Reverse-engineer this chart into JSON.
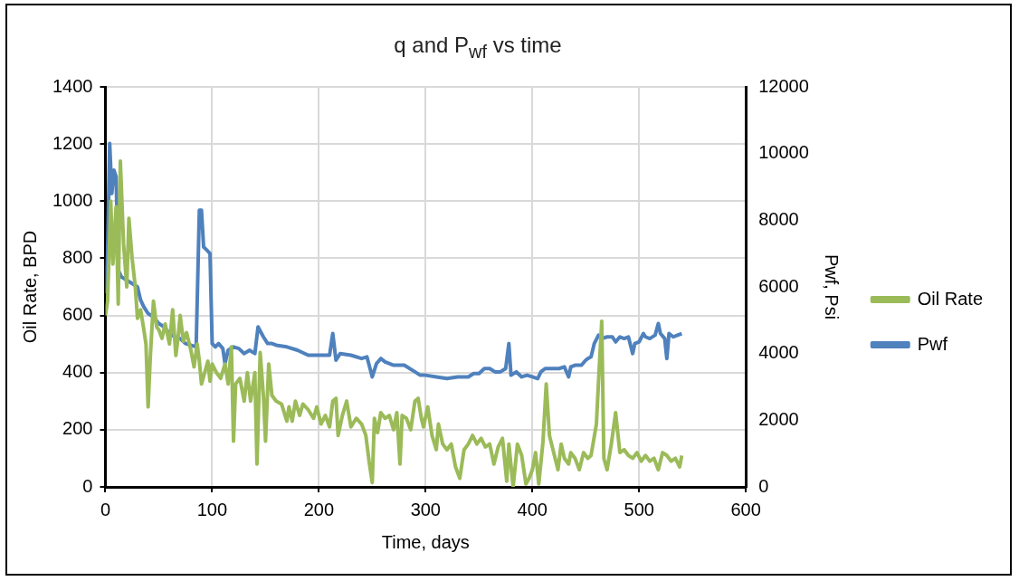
{
  "chart_data": {
    "type": "line",
    "title": "q and P$_{wf}$ vs time",
    "xlabel": "Time, days",
    "ylabel": "Oil Rate, BPD",
    "y2label": "Pwf, Psi",
    "xlim": [
      0,
      600
    ],
    "xticks": [
      0,
      100,
      200,
      300,
      400,
      500,
      600
    ],
    "ylim": [
      0,
      1400
    ],
    "yticks": [
      0,
      200,
      400,
      600,
      800,
      1000,
      1200,
      1400
    ],
    "y2lim": [
      0,
      12000
    ],
    "y2ticks": [
      0,
      2000,
      4000,
      6000,
      8000,
      10000,
      12000
    ],
    "grid": true,
    "legend": "right",
    "marker": "none",
    "line_style": "solid",
    "series": [
      {
        "name": "Oil Rate",
        "color": "#9bbb59",
        "x": [
          0,
          2,
          5,
          7,
          10,
          12,
          14,
          17,
          20,
          22,
          25,
          28,
          30,
          33,
          36,
          38,
          40,
          42,
          45,
          48,
          50,
          53,
          56,
          60,
          63,
          66,
          68,
          70,
          73,
          76,
          80,
          83,
          86,
          88,
          90,
          93,
          96,
          98,
          100,
          104,
          108,
          112,
          115,
          118,
          120,
          122,
          126,
          130,
          133,
          136,
          140,
          142,
          145,
          148,
          150,
          153,
          156,
          160,
          165,
          170,
          172,
          175,
          178,
          182,
          185,
          190,
          195,
          198,
          202,
          206,
          210,
          213,
          216,
          218,
          222,
          226,
          230,
          235,
          240,
          244,
          247,
          250,
          252,
          255,
          258,
          262,
          266,
          270,
          273,
          276,
          278,
          282,
          286,
          290,
          293,
          296,
          298,
          302,
          306,
          310,
          312,
          316,
          320,
          324,
          328,
          332,
          336,
          340,
          344,
          348,
          352,
          356,
          360,
          364,
          368,
          372,
          376,
          378,
          382,
          386,
          390,
          394,
          397,
          400,
          403,
          406,
          410,
          413,
          416,
          420,
          424,
          427,
          430,
          434,
          436,
          440,
          444,
          448,
          452,
          455,
          460,
          462,
          465,
          467,
          470,
          474,
          478,
          482,
          486,
          490,
          494,
          498,
          502,
          506,
          510,
          514,
          518,
          522,
          526,
          530,
          534,
          538,
          540
        ],
        "values": [
          600,
          650,
          1000,
          780,
          980,
          640,
          1140,
          850,
          700,
          940,
          800,
          700,
          590,
          620,
          550,
          500,
          280,
          450,
          650,
          560,
          550,
          520,
          570,
          500,
          620,
          460,
          520,
          600,
          510,
          540,
          480,
          420,
          500,
          440,
          360,
          400,
          440,
          370,
          430,
          400,
          380,
          430,
          360,
          490,
          160,
          360,
          380,
          300,
          400,
          300,
          400,
          80,
          470,
          320,
          160,
          430,
          320,
          300,
          290,
          230,
          280,
          230,
          300,
          250,
          290,
          270,
          240,
          280,
          220,
          250,
          210,
          300,
          310,
          180,
          250,
          300,
          210,
          240,
          220,
          180,
          90,
          15,
          240,
          190,
          260,
          240,
          250,
          200,
          260,
          80,
          250,
          240,
          200,
          300,
          310,
          240,
          210,
          280,
          180,
          130,
          220,
          150,
          130,
          150,
          70,
          30,
          130,
          150,
          180,
          150,
          170,
          140,
          150,
          80,
          140,
          170,
          20,
          150,
          0,
          150,
          110,
          10,
          30,
          60,
          120,
          10,
          160,
          360,
          180,
          120,
          60,
          150,
          100,
          80,
          120,
          100,
          60,
          120,
          100,
          110,
          220,
          370,
          580,
          100,
          60,
          150,
          260,
          120,
          130,
          110,
          100,
          120,
          90,
          110,
          90,
          100,
          60,
          120,
          110,
          90,
          100,
          70,
          110
        ]
      },
      {
        "name": "Pwf",
        "color": "#4f81bd",
        "axis": "y2",
        "x": [
          0,
          2,
          4,
          6,
          8,
          10,
          12,
          15,
          20,
          25,
          30,
          33,
          36,
          40,
          45,
          50,
          55,
          60,
          65,
          70,
          75,
          80,
          85,
          88,
          90,
          92,
          95,
          98,
          100,
          103,
          106,
          110,
          112,
          115,
          120,
          125,
          130,
          135,
          140,
          143,
          148,
          152,
          156,
          160,
          170,
          180,
          190,
          200,
          210,
          213,
          216,
          220,
          230,
          240,
          245,
          250,
          254,
          258,
          262,
          270,
          280,
          290,
          295,
          300,
          310,
          320,
          330,
          340,
          345,
          350,
          355,
          360,
          365,
          370,
          375,
          378,
          380,
          385,
          390,
          395,
          400,
          405,
          408,
          412,
          420,
          425,
          430,
          434,
          436,
          440,
          446,
          450,
          452,
          455,
          458,
          462,
          465,
          470,
          475,
          478,
          482,
          486,
          490,
          494,
          496,
          500,
          504,
          506,
          510,
          515,
          518,
          520,
          524,
          526,
          528,
          532,
          536,
          540
        ],
        "values": [
          5800,
          7000,
          10300,
          8800,
          9500,
          9300,
          6500,
          6300,
          6200,
          6100,
          6000,
          5600,
          5400,
          5200,
          5100,
          4900,
          4800,
          4600,
          4500,
          4450,
          4300,
          4250,
          4200,
          8300,
          8300,
          7200,
          7100,
          7000,
          4300,
          4200,
          4300,
          4150,
          3700,
          4100,
          4200,
          4150,
          4000,
          4100,
          4000,
          4800,
          4500,
          4300,
          4300,
          4250,
          4200,
          4100,
          3950,
          3950,
          3950,
          4600,
          3800,
          4000,
          3950,
          3850,
          3900,
          3300,
          3700,
          3850,
          3750,
          3650,
          3650,
          3450,
          3350,
          3350,
          3300,
          3250,
          3300,
          3300,
          3400,
          3400,
          3550,
          3550,
          3450,
          3450,
          3550,
          4300,
          3350,
          3450,
          3300,
          3350,
          3300,
          3250,
          3450,
          3550,
          3550,
          3550,
          3600,
          3300,
          3600,
          3650,
          3650,
          3800,
          3850,
          3900,
          4300,
          4550,
          4450,
          4500,
          4500,
          4350,
          4500,
          4450,
          4500,
          4000,
          4300,
          4350,
          4600,
          4500,
          4450,
          4550,
          4900,
          4600,
          4450,
          3850,
          4600,
          4500,
          4550,
          4600
        ]
      }
    ]
  }
}
